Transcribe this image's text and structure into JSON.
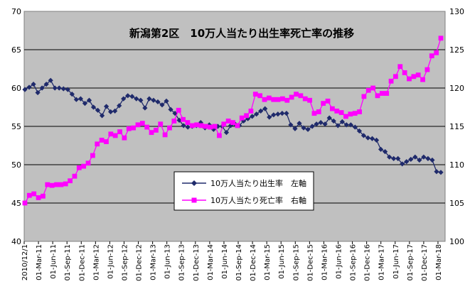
{
  "chart_data": {
    "type": "line",
    "title": "新潟第2区　10万人当たり出生率死亡率の推移",
    "x_labels": [
      "2010/12/1",
      "01-Mar-11",
      "01-Jun-11",
      "01-Sep-11",
      "01-Dec-11",
      "01-Mar-12",
      "01-Jun-12",
      "01-Sep-12",
      "01-Dec-12",
      "01-Mar-13",
      "01-Jun-13",
      "01-Sep-13",
      "01-Dec-13",
      "01-Mar-14",
      "01-Jun-14",
      "01-Sep-14",
      "01-Dec-14",
      "01-Mar-15",
      "01-Jun-15",
      "01-Sep-15",
      "01-Dec-15",
      "01-Mar-16",
      "01-Jun-16",
      "01-Sep-16",
      "01-Dec-16",
      "01-Mar-17",
      "01-Jun-17",
      "01-Sep-17",
      "01-Dec-17",
      "01-Mar-18"
    ],
    "y_left": {
      "min": 40,
      "max": 70,
      "ticks": [
        "40",
        "45",
        "50",
        "55",
        "60",
        "65",
        "70"
      ]
    },
    "y_right": {
      "min": 100,
      "max": 130,
      "ticks": [
        "100",
        "105",
        "110",
        "115",
        "120",
        "125",
        "130"
      ]
    },
    "grid": true,
    "legend_position": "center",
    "series": [
      {
        "name": "10万人当たり出生率　左軸",
        "axis": "left",
        "color": "#1f2a6b",
        "marker": "diamond",
        "values": [
          59.8,
          60.1,
          60.5,
          59.4,
          60.0,
          60.5,
          61.0,
          60.0,
          60.0,
          59.9,
          59.8,
          59.2,
          58.5,
          58.6,
          58.0,
          58.4,
          57.5,
          57.1,
          56.4,
          57.6,
          56.9,
          57.0,
          57.7,
          58.6,
          59.0,
          58.9,
          58.6,
          58.4,
          57.4,
          58.6,
          58.4,
          58.2,
          57.8,
          58.3,
          57.2,
          56.7,
          55.8,
          55.1,
          54.9,
          55.0,
          55.1,
          55.5,
          54.8,
          55.2,
          54.6,
          55.0,
          55.0,
          54.2,
          55.1,
          55.3,
          55.1,
          55.7,
          56.0,
          56.3,
          56.6,
          57.0,
          57.3,
          56.2,
          56.5,
          56.6,
          56.7,
          56.7,
          55.2,
          54.7,
          55.4,
          54.8,
          54.6,
          55.0,
          55.3,
          55.5,
          55.3,
          56.1,
          55.7,
          55.1,
          55.6,
          55.2,
          55.2,
          54.9,
          54.4,
          53.8,
          53.5,
          53.4,
          53.2,
          52.0,
          51.7,
          51.0,
          50.8,
          50.8,
          50.1,
          50.4,
          50.7,
          51.0,
          50.6,
          51.0,
          50.8,
          50.6,
          49.1,
          49.0
        ]
      },
      {
        "name": "10万人当たり死亡率　右軸",
        "axis": "right",
        "color": "#ff00ff",
        "marker": "square",
        "values": [
          105.0,
          106.0,
          106.2,
          105.7,
          105.9,
          107.4,
          107.3,
          107.4,
          107.4,
          107.5,
          107.9,
          108.5,
          109.6,
          109.8,
          110.2,
          111.2,
          112.7,
          113.2,
          113.0,
          114.0,
          113.8,
          114.3,
          113.5,
          114.7,
          114.8,
          115.2,
          115.4,
          114.9,
          114.2,
          114.5,
          115.3,
          113.9,
          114.8,
          115.7,
          117.1,
          115.9,
          115.5,
          115.1,
          115.2,
          115.1,
          115.0,
          114.9,
          115.0,
          113.8,
          115.3,
          115.7,
          115.5,
          115.1,
          116.1,
          116.4,
          117.0,
          119.2,
          119.0,
          118.5,
          118.7,
          118.5,
          118.5,
          118.6,
          118.4,
          118.8,
          119.2,
          119.0,
          118.6,
          118.4,
          116.7,
          116.9,
          118.0,
          118.3,
          117.3,
          117.0,
          116.8,
          116.3,
          116.6,
          116.7,
          116.9,
          118.9,
          119.7,
          120.0,
          119.0,
          119.3,
          119.3,
          120.9,
          121.5,
          122.8,
          122.0,
          121.2,
          121.5,
          121.7,
          121.1,
          122.4,
          124.2,
          124.6,
          126.5
        ]
      }
    ]
  }
}
